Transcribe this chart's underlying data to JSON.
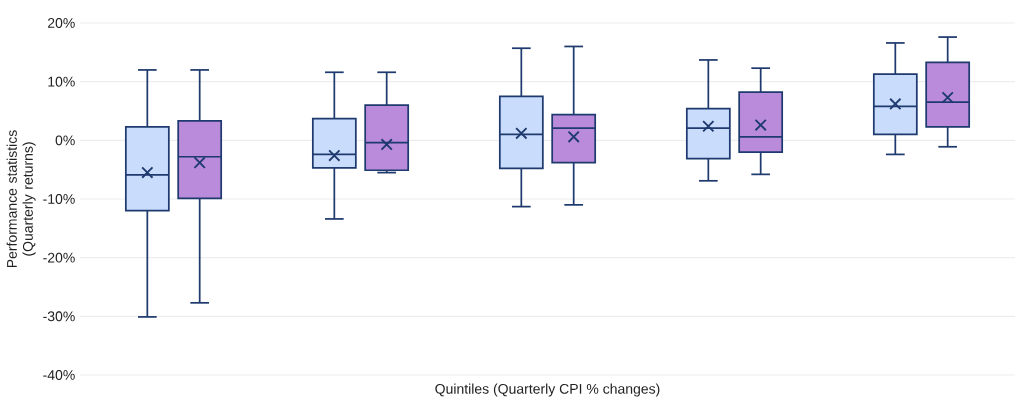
{
  "chart_data": {
    "type": "box",
    "xlabel": "Quintiles (Quarterly CPI % changes)",
    "ylabel": "Performance statistics (Quarterly returns)",
    "categories": [
      null,
      null,
      null,
      null,
      null
    ],
    "ylim": [
      -40,
      20
    ],
    "yticks": [
      {
        "value": -40,
        "label": "-40%"
      },
      {
        "value": -30,
        "label": "-30%"
      },
      {
        "value": -20,
        "label": "-20%"
      },
      {
        "value": -10,
        "label": "-10%"
      },
      {
        "value": 0,
        "label": "0%"
      },
      {
        "value": 10,
        "label": "10%"
      },
      {
        "value": 20,
        "label": "20%"
      }
    ],
    "grid": "y",
    "tick_labels": "y",
    "series": [
      {
        "color": "#c9dcfb",
        "boxes": [
          {
            "low": -30.1,
            "q1": -12.0,
            "median": -5.9,
            "q3": 2.3,
            "high": 12.0,
            "mean": -5.5
          },
          {
            "low": -13.4,
            "q1": -4.7,
            "median": -2.4,
            "q3": 3.7,
            "high": 11.6,
            "mean": -2.6
          },
          {
            "low": -11.3,
            "q1": -4.8,
            "median": 1.0,
            "q3": 7.5,
            "high": 15.7,
            "mean": 1.2
          },
          {
            "low": -6.9,
            "q1": -3.1,
            "median": 2.1,
            "q3": 5.4,
            "high": 13.7,
            "mean": 2.4
          },
          {
            "low": -2.4,
            "q1": 1.0,
            "median": 5.8,
            "q3": 11.3,
            "high": 16.6,
            "mean": 6.2
          }
        ]
      },
      {
        "color": "#b98bda",
        "boxes": [
          {
            "low": -27.7,
            "q1": -9.9,
            "median": -2.8,
            "q3": 3.3,
            "high": 12.0,
            "mean": -3.8
          },
          {
            "low": -5.5,
            "q1": -5.1,
            "median": -0.4,
            "q3": 6.0,
            "high": 11.6,
            "mean": -0.7
          },
          {
            "low": -11.0,
            "q1": -3.8,
            "median": 2.1,
            "q3": 4.4,
            "high": 16.0,
            "mean": 0.6
          },
          {
            "low": -5.8,
            "q1": -2.0,
            "median": 0.6,
            "q3": 8.2,
            "high": 12.3,
            "mean": 2.6
          },
          {
            "low": -1.1,
            "q1": 2.3,
            "median": 6.5,
            "q3": 13.3,
            "high": 17.6,
            "mean": 7.3
          }
        ]
      }
    ]
  }
}
